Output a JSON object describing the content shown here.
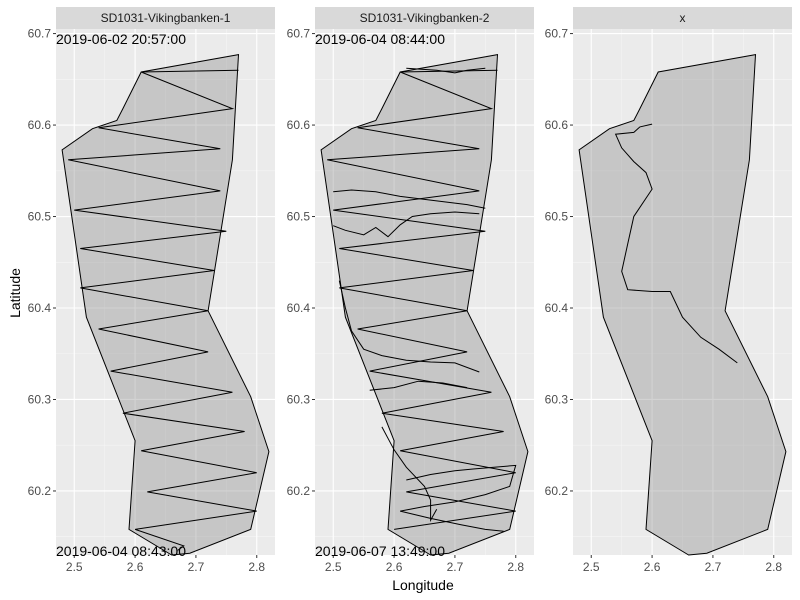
{
  "chart_data": {
    "type": "line",
    "xlabel": "Longitude",
    "ylabel": "Latitude",
    "xlim": [
      2.47,
      2.83
    ],
    "ylim": [
      60.13,
      60.705
    ],
    "x_ticks": [
      2.5,
      2.6,
      2.7,
      2.8
    ],
    "x_tick_labels": [
      "2.5",
      "2.6",
      "2.7",
      "2.8"
    ],
    "y_ticks": [
      60.2,
      60.3,
      60.4,
      60.5,
      60.6,
      60.7
    ],
    "y_tick_labels": [
      "60.2",
      "60.3",
      "60.4",
      "60.5",
      "60.6",
      "60.7"
    ],
    "grid": true,
    "area_polygon": [
      [
        2.66,
        60.13
      ],
      [
        2.59,
        60.158
      ],
      [
        2.6,
        60.255
      ],
      [
        2.52,
        60.39
      ],
      [
        2.48,
        60.573
      ],
      [
        2.53,
        60.596
      ],
      [
        2.57,
        60.605
      ],
      [
        2.58,
        60.618
      ],
      [
        2.61,
        60.658
      ],
      [
        2.77,
        60.677
      ],
      [
        2.76,
        60.562
      ],
      [
        2.72,
        60.397
      ],
      [
        2.79,
        60.303
      ],
      [
        2.82,
        60.243
      ],
      [
        2.79,
        60.158
      ],
      [
        2.69,
        60.132
      ]
    ],
    "panels": [
      {
        "strip": "SD1031-Vikingbanken-1",
        "start_time": "2019-06-02 20:57:00",
        "end_time": "2019-06-04 08:43:00",
        "track": [
          [
            2.77,
            60.66
          ],
          [
            2.61,
            60.658
          ],
          [
            2.76,
            60.618
          ],
          [
            2.54,
            60.597
          ],
          [
            2.74,
            60.574
          ],
          [
            2.49,
            60.562
          ],
          [
            2.74,
            60.528
          ],
          [
            2.5,
            60.507
          ],
          [
            2.75,
            60.484
          ],
          [
            2.51,
            60.465
          ],
          [
            2.73,
            60.441
          ],
          [
            2.51,
            60.422
          ],
          [
            2.72,
            60.397
          ],
          [
            2.54,
            60.377
          ],
          [
            2.72,
            60.352
          ],
          [
            2.56,
            60.331
          ],
          [
            2.76,
            60.308
          ],
          [
            2.58,
            60.285
          ],
          [
            2.78,
            60.265
          ],
          [
            2.61,
            60.244
          ],
          [
            2.8,
            60.22
          ],
          [
            2.62,
            60.199
          ],
          [
            2.8,
            60.178
          ],
          [
            2.6,
            60.158
          ],
          [
            2.68,
            60.14
          ],
          [
            2.67,
            60.135
          ]
        ]
      },
      {
        "strip": "SD1031-Vikingbanken-2",
        "start_time": "2019-06-04 08:44:00",
        "end_time": "2019-06-07 13:49:00",
        "track": [
          [
            2.77,
            60.66
          ],
          [
            2.61,
            60.658
          ],
          [
            2.76,
            60.618
          ],
          [
            2.54,
            60.597
          ],
          [
            2.74,
            60.574
          ],
          [
            2.49,
            60.562
          ],
          [
            2.74,
            60.528
          ],
          [
            2.5,
            60.507
          ],
          [
            2.75,
            60.484
          ],
          [
            2.51,
            60.465
          ],
          [
            2.73,
            60.441
          ],
          [
            2.51,
            60.422
          ],
          [
            2.72,
            60.397
          ],
          [
            2.54,
            60.377
          ],
          [
            2.72,
            60.352
          ],
          [
            2.56,
            60.331
          ],
          [
            2.76,
            60.308
          ],
          [
            2.58,
            60.285
          ],
          [
            2.78,
            60.265
          ],
          [
            2.61,
            60.244
          ],
          [
            2.8,
            60.22
          ],
          [
            2.62,
            60.199
          ],
          [
            2.8,
            60.178
          ],
          [
            2.6,
            60.158
          ]
        ],
        "extra_tracks": [
          [
            [
              2.62,
              60.662
            ],
            [
              2.67,
              60.66
            ],
            [
              2.7,
              60.657
            ],
            [
              2.72,
              60.66
            ],
            [
              2.75,
              60.662
            ]
          ],
          [
            [
              2.5,
              60.527
            ],
            [
              2.53,
              60.529
            ],
            [
              2.57,
              60.527
            ],
            [
              2.61,
              60.522
            ],
            [
              2.66,
              60.518
            ],
            [
              2.72,
              60.513
            ],
            [
              2.75,
              60.509
            ]
          ],
          [
            [
              2.5,
              60.49
            ],
            [
              2.52,
              60.485
            ],
            [
              2.55,
              60.48
            ],
            [
              2.57,
              60.488
            ],
            [
              2.59,
              60.478
            ],
            [
              2.61,
              60.491
            ],
            [
              2.63,
              60.5
            ],
            [
              2.66,
              60.503
            ],
            [
              2.7,
              60.505
            ],
            [
              2.74,
              60.503
            ]
          ],
          [
            [
              2.51,
              60.43
            ],
            [
              2.52,
              60.4
            ],
            [
              2.53,
              60.375
            ],
            [
              2.55,
              60.355
            ],
            [
              2.58,
              60.348
            ],
            [
              2.62,
              60.343
            ],
            [
              2.66,
              60.341
            ],
            [
              2.7,
              60.34
            ],
            [
              2.74,
              60.33
            ]
          ],
          [
            [
              2.56,
              60.31
            ],
            [
              2.6,
              60.313
            ],
            [
              2.64,
              60.32
            ],
            [
              2.68,
              60.318
            ],
            [
              2.72,
              60.313
            ]
          ],
          [
            [
              2.58,
              60.27
            ],
            [
              2.6,
              60.245
            ],
            [
              2.62,
              60.226
            ],
            [
              2.65,
              60.205
            ],
            [
              2.66,
              60.19
            ],
            [
              2.66,
              60.168
            ],
            [
              2.67,
              60.18
            ]
          ],
          [
            [
              2.62,
              60.212
            ],
            [
              2.66,
              60.218
            ],
            [
              2.7,
              60.222
            ],
            [
              2.73,
              60.224
            ],
            [
              2.8,
              60.228
            ],
            [
              2.79,
              60.205
            ],
            [
              2.75,
              60.196
            ],
            [
              2.7,
              60.188
            ],
            [
              2.65,
              60.183
            ],
            [
              2.61,
              60.178
            ]
          ],
          [
            [
              2.61,
              60.178
            ],
            [
              2.66,
              60.17
            ],
            [
              2.71,
              60.163
            ],
            [
              2.75,
              60.158
            ],
            [
              2.78,
              60.156
            ]
          ]
        ]
      },
      {
        "strip": "x",
        "start_time": "",
        "end_time": "",
        "track": [
          [
            2.6,
            60.601
          ],
          [
            2.58,
            60.598
          ],
          [
            2.57,
            60.592
          ],
          [
            2.54,
            60.59
          ],
          [
            2.55,
            60.575
          ],
          [
            2.57,
            60.56
          ],
          [
            2.59,
            60.548
          ],
          [
            2.6,
            60.53
          ],
          [
            2.57,
            60.5
          ],
          [
            2.56,
            60.47
          ],
          [
            2.55,
            60.44
          ],
          [
            2.56,
            60.42
          ],
          [
            2.6,
            60.418
          ],
          [
            2.63,
            60.418
          ],
          [
            2.65,
            60.39
          ],
          [
            2.68,
            60.368
          ],
          [
            2.71,
            60.355
          ],
          [
            2.74,
            60.34
          ]
        ]
      }
    ]
  }
}
